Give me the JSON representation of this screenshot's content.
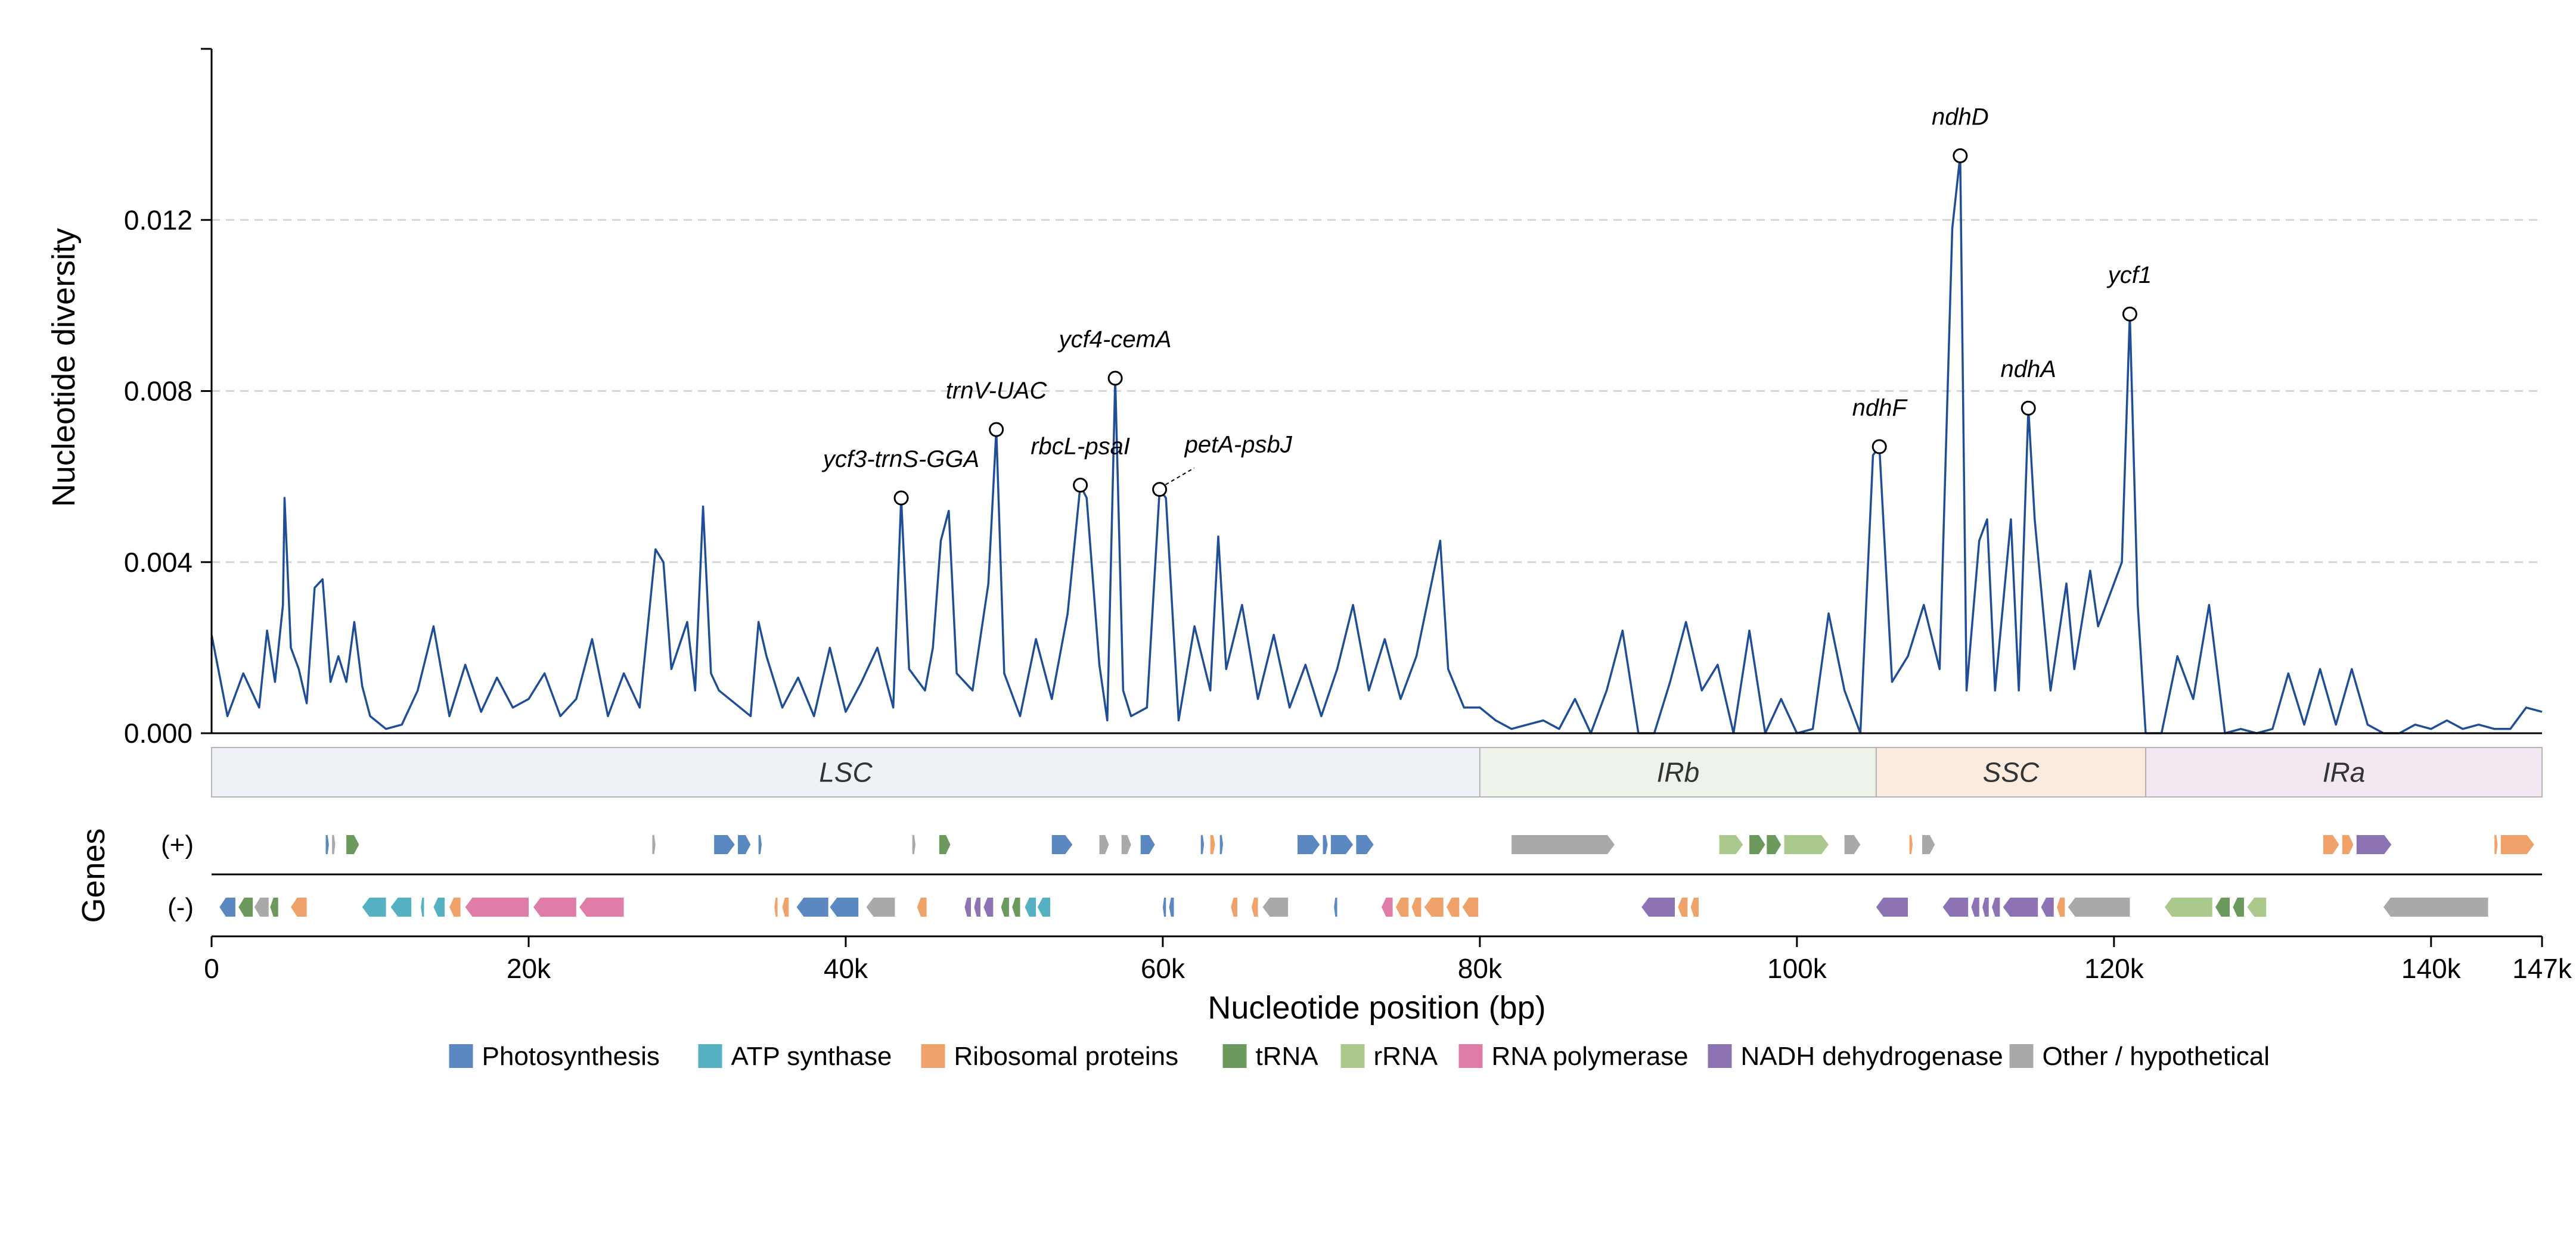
{
  "chart_data": {
    "type": "line",
    "xlabel": "Nucleotide position (bp)",
    "ylabel": "Nucleotide diversity",
    "xlim": [
      0,
      147000
    ],
    "ylim": [
      0,
      0.016
    ],
    "x_ticks": [
      0,
      20000,
      40000,
      60000,
      80000,
      100000,
      120000,
      140000,
      147000
    ],
    "x_tick_labels": [
      "0",
      "20k",
      "40k",
      "60k",
      "80k",
      "100k",
      "120k",
      "140k",
      "147k"
    ],
    "y_ticks": [
      0,
      0.004,
      0.008,
      0.012
    ],
    "y_tick_labels": [
      "0.000",
      "0.004",
      "0.008",
      "0.012"
    ],
    "grid": "horizontal dashed",
    "line_color": "#1f4e96",
    "series_points": [
      [
        0,
        0.0023
      ],
      [
        1000,
        0.0004
      ],
      [
        2000,
        0.0014
      ],
      [
        3000,
        0.0006
      ],
      [
        3500,
        0.0024
      ],
      [
        4000,
        0.0012
      ],
      [
        4500,
        0.003
      ],
      [
        4600,
        0.0055
      ],
      [
        5000,
        0.002
      ],
      [
        5500,
        0.0015
      ],
      [
        6000,
        0.0007
      ],
      [
        6500,
        0.0034
      ],
      [
        7000,
        0.0036
      ],
      [
        7500,
        0.0012
      ],
      [
        8000,
        0.0018
      ],
      [
        8500,
        0.0012
      ],
      [
        9000,
        0.0026
      ],
      [
        9500,
        0.0011
      ],
      [
        10000,
        0.0004
      ],
      [
        11000,
        0.0001
      ],
      [
        12000,
        0.0002
      ],
      [
        13000,
        0.001
      ],
      [
        14000,
        0.0025
      ],
      [
        15000,
        0.0004
      ],
      [
        16000,
        0.0016
      ],
      [
        17000,
        0.0005
      ],
      [
        18000,
        0.0013
      ],
      [
        19000,
        0.0006
      ],
      [
        20000,
        0.0008
      ],
      [
        21000,
        0.0014
      ],
      [
        22000,
        0.0004
      ],
      [
        23000,
        0.0008
      ],
      [
        24000,
        0.0022
      ],
      [
        25000,
        0.0004
      ],
      [
        26000,
        0.0014
      ],
      [
        27000,
        0.0006
      ],
      [
        28000,
        0.0043
      ],
      [
        28500,
        0.004
      ],
      [
        29000,
        0.0015
      ],
      [
        30000,
        0.0026
      ],
      [
        30500,
        0.001
      ],
      [
        31000,
        0.0053
      ],
      [
        31500,
        0.0014
      ],
      [
        32000,
        0.001
      ],
      [
        33000,
        0.0007
      ],
      [
        34000,
        0.0004
      ],
      [
        34500,
        0.0026
      ],
      [
        35000,
        0.0018
      ],
      [
        36000,
        0.0006
      ],
      [
        37000,
        0.0013
      ],
      [
        38000,
        0.0004
      ],
      [
        39000,
        0.002
      ],
      [
        40000,
        0.0005
      ],
      [
        41000,
        0.0012
      ],
      [
        42000,
        0.002
      ],
      [
        43000,
        0.0006
      ],
      [
        43500,
        0.0055
      ],
      [
        44000,
        0.0015
      ],
      [
        45000,
        0.001
      ],
      [
        45500,
        0.002
      ],
      [
        46000,
        0.0045
      ],
      [
        46500,
        0.0052
      ],
      [
        47000,
        0.0014
      ],
      [
        48000,
        0.001
      ],
      [
        49000,
        0.0035
      ],
      [
        49500,
        0.0071
      ],
      [
        50000,
        0.0014
      ],
      [
        51000,
        0.0004
      ],
      [
        52000,
        0.0022
      ],
      [
        53000,
        0.0008
      ],
      [
        54000,
        0.0028
      ],
      [
        54800,
        0.0058
      ],
      [
        55200,
        0.0055
      ],
      [
        56000,
        0.0016
      ],
      [
        56500,
        0.0003
      ],
      [
        57000,
        0.0083
      ],
      [
        57500,
        0.001
      ],
      [
        58000,
        0.0004
      ],
      [
        59000,
        0.0006
      ],
      [
        59800,
        0.0057
      ],
      [
        60200,
        0.0055
      ],
      [
        61000,
        0.0003
      ],
      [
        62000,
        0.0025
      ],
      [
        63000,
        0.001
      ],
      [
        63500,
        0.0046
      ],
      [
        64000,
        0.0015
      ],
      [
        65000,
        0.003
      ],
      [
        66000,
        0.0008
      ],
      [
        67000,
        0.0023
      ],
      [
        68000,
        0.0006
      ],
      [
        69000,
        0.0016
      ],
      [
        70000,
        0.0004
      ],
      [
        71000,
        0.0015
      ],
      [
        72000,
        0.003
      ],
      [
        73000,
        0.001
      ],
      [
        74000,
        0.0022
      ],
      [
        75000,
        0.0008
      ],
      [
        76000,
        0.0018
      ],
      [
        77000,
        0.0036
      ],
      [
        77500,
        0.0045
      ],
      [
        78000,
        0.0015
      ],
      [
        79000,
        0.0006
      ],
      [
        80000,
        0.0006
      ],
      [
        81000,
        0.0003
      ],
      [
        82000,
        0.0001
      ],
      [
        83000,
        0.0002
      ],
      [
        84000,
        0.0003
      ],
      [
        85000,
        0.0001
      ],
      [
        86000,
        0.0008
      ],
      [
        87000,
        0.0
      ],
      [
        88000,
        0.001
      ],
      [
        89000,
        0.0024
      ],
      [
        90000,
        0.0
      ],
      [
        91000,
        0.0
      ],
      [
        92000,
        0.0012
      ],
      [
        93000,
        0.0026
      ],
      [
        94000,
        0.001
      ],
      [
        95000,
        0.0016
      ],
      [
        96000,
        0.0
      ],
      [
        97000,
        0.0024
      ],
      [
        98000,
        0.0
      ],
      [
        99000,
        0.0008
      ],
      [
        100000,
        0.0
      ],
      [
        101000,
        0.0001
      ],
      [
        102000,
        0.0028
      ],
      [
        103000,
        0.001
      ],
      [
        104000,
        0.0
      ],
      [
        104800,
        0.0065
      ],
      [
        105200,
        0.0067
      ],
      [
        106000,
        0.0012
      ],
      [
        107000,
        0.0018
      ],
      [
        108000,
        0.003
      ],
      [
        109000,
        0.0015
      ],
      [
        109800,
        0.0118
      ],
      [
        110300,
        0.0135
      ],
      [
        110700,
        0.001
      ],
      [
        111500,
        0.0045
      ],
      [
        112000,
        0.005
      ],
      [
        112500,
        0.001
      ],
      [
        113500,
        0.005
      ],
      [
        114000,
        0.001
      ],
      [
        114600,
        0.0076
      ],
      [
        115000,
        0.005
      ],
      [
        116000,
        0.001
      ],
      [
        117000,
        0.0035
      ],
      [
        117500,
        0.0015
      ],
      [
        118500,
        0.0038
      ],
      [
        119000,
        0.0025
      ],
      [
        120500,
        0.004
      ],
      [
        121000,
        0.0098
      ],
      [
        121500,
        0.003
      ],
      [
        122000,
        0.0
      ],
      [
        123000,
        0.0
      ],
      [
        124000,
        0.0018
      ],
      [
        125000,
        0.0008
      ],
      [
        126000,
        0.003
      ],
      [
        127000,
        0.0
      ],
      [
        128000,
        0.0001
      ],
      [
        129000,
        0.0
      ],
      [
        130000,
        0.0001
      ],
      [
        131000,
        0.0014
      ],
      [
        132000,
        0.0002
      ],
      [
        133000,
        0.0015
      ],
      [
        134000,
        0.0002
      ],
      [
        135000,
        0.0015
      ],
      [
        136000,
        0.0002
      ],
      [
        137000,
        0.0
      ],
      [
        138000,
        0.0
      ],
      [
        139000,
        0.0002
      ],
      [
        140000,
        0.0001
      ],
      [
        141000,
        0.0003
      ],
      [
        142000,
        0.0001
      ],
      [
        143000,
        0.0002
      ],
      [
        144000,
        0.0001
      ],
      [
        145000,
        0.0001
      ],
      [
        146000,
        0.0006
      ],
      [
        147000,
        0.0005
      ]
    ],
    "peaks": [
      {
        "label": "ycf3-trnS-GGA",
        "x": 43500,
        "y": 0.0055
      },
      {
        "label": "trnV-UAC",
        "x": 49500,
        "y": 0.0071
      },
      {
        "label": "rbcL-psaI",
        "x": 54800,
        "y": 0.0058
      },
      {
        "label": "ycf4-cemA",
        "x": 57000,
        "y": 0.0083
      },
      {
        "label": "petA-psbJ",
        "x": 59800,
        "y": 0.0057
      },
      {
        "label": "ndhF",
        "x": 105200,
        "y": 0.0067
      },
      {
        "label": "ndhD",
        "x": 110300,
        "y": 0.0135
      },
      {
        "label": "ndhA",
        "x": 114600,
        "y": 0.0076
      },
      {
        "label": "ycf1",
        "x": 121000,
        "y": 0.0098
      }
    ],
    "regions": [
      {
        "label": "LSC",
        "start": 0,
        "end": 80000,
        "color": "#eef2f6"
      },
      {
        "label": "IRb",
        "start": 80000,
        "end": 105000,
        "color": "#edf3ea"
      },
      {
        "label": "SSC",
        "start": 105000,
        "end": 122000,
        "color": "#faebde"
      },
      {
        "label": "IRa",
        "start": 122000,
        "end": 147000,
        "color": "#f3e7f2"
      }
    ],
    "gene_track_title": "Genes",
    "strand_labels": [
      "(+)",
      "(-)"
    ],
    "categories": [
      {
        "name": "Photosynthesis",
        "color": "#5b88c0"
      },
      {
        "name": "ATP synthase",
        "color": "#56b2c2"
      },
      {
        "name": "Ribosomal proteins",
        "color": "#efa36a"
      },
      {
        "name": "tRNA",
        "color": "#6b9a5c"
      },
      {
        "name": "rRNA",
        "color": "#acc98d"
      },
      {
        "name": "RNA polymerase",
        "color": "#e07ca8"
      },
      {
        "name": "NADH dehydrogenase",
        "color": "#8e73b4"
      },
      {
        "name": "Other / hypothetical",
        "color": "#a9a9a9"
      }
    ],
    "genes_plus": [
      [
        7200,
        7400,
        "Photosynthesis"
      ],
      [
        7600,
        7800,
        "Other / hypothetical"
      ],
      [
        8500,
        9300,
        "tRNA"
      ],
      [
        27800,
        28000,
        "Other / hypothetical"
      ],
      [
        31700,
        33000,
        "Photosynthesis"
      ],
      [
        33200,
        34000,
        "Photosynthesis"
      ],
      [
        34500,
        34700,
        "Photosynthesis"
      ],
      [
        44200,
        44400,
        "Other / hypothetical"
      ],
      [
        45900,
        46600,
        "tRNA"
      ],
      [
        53000,
        54300,
        "Photosynthesis"
      ],
      [
        56000,
        56600,
        "Other / hypothetical"
      ],
      [
        57400,
        58000,
        "Other / hypothetical"
      ],
      [
        58600,
        59500,
        "Photosynthesis"
      ],
      [
        62400,
        62600,
        "Photosynthesis"
      ],
      [
        63000,
        63300,
        "Ribosomal proteins"
      ],
      [
        63600,
        63800,
        "Photosynthesis"
      ],
      [
        68500,
        69900,
        "Photosynthesis"
      ],
      [
        70100,
        70400,
        "Photosynthesis"
      ],
      [
        70600,
        72000,
        "Photosynthesis"
      ],
      [
        72200,
        73300,
        "Photosynthesis"
      ],
      [
        82000,
        88500,
        "Other / hypothetical"
      ],
      [
        95100,
        96600,
        "rRNA"
      ],
      [
        97000,
        98000,
        "tRNA"
      ],
      [
        98100,
        99000,
        "tRNA"
      ],
      [
        99200,
        102000,
        "rRNA"
      ],
      [
        103000,
        104000,
        "Other / hypothetical"
      ],
      [
        107100,
        107300,
        "Ribosomal proteins"
      ],
      [
        107900,
        108700,
        "Other / hypothetical"
      ],
      [
        133200,
        134200,
        "Ribosomal proteins"
      ],
      [
        134400,
        135100,
        "Ribosomal proteins"
      ],
      [
        135300,
        137500,
        "NADH dehydrogenase"
      ],
      [
        144000,
        144200,
        "Ribosomal proteins"
      ],
      [
        144400,
        146500,
        "Ribosomal proteins"
      ]
    ],
    "genes_minus": [
      [
        500,
        1500,
        "Photosynthesis"
      ],
      [
        1700,
        2600,
        "tRNA"
      ],
      [
        2700,
        3600,
        "Other / hypothetical"
      ],
      [
        3700,
        4200,
        "tRNA"
      ],
      [
        5000,
        6000,
        "Ribosomal proteins"
      ],
      [
        9500,
        11000,
        "ATP synthase"
      ],
      [
        11300,
        12600,
        "ATP synthase"
      ],
      [
        13200,
        13400,
        "ATP synthase"
      ],
      [
        14000,
        14700,
        "ATP synthase"
      ],
      [
        15000,
        15700,
        "Ribosomal proteins"
      ],
      [
        16000,
        20000,
        "RNA polymerase"
      ],
      [
        20300,
        23000,
        "RNA polymerase"
      ],
      [
        23200,
        26000,
        "RNA polymerase"
      ],
      [
        35500,
        35700,
        "Ribosomal proteins"
      ],
      [
        36000,
        36400,
        "Ribosomal proteins"
      ],
      [
        36900,
        38900,
        "Photosynthesis"
      ],
      [
        39000,
        40800,
        "Photosynthesis"
      ],
      [
        41300,
        43100,
        "Other / hypothetical"
      ],
      [
        44500,
        45100,
        "Ribosomal proteins"
      ],
      [
        47500,
        47900,
        "NADH dehydrogenase"
      ],
      [
        48100,
        48500,
        "NADH dehydrogenase"
      ],
      [
        48700,
        49300,
        "NADH dehydrogenase"
      ],
      [
        49800,
        50300,
        "tRNA"
      ],
      [
        50500,
        51000,
        "tRNA"
      ],
      [
        51300,
        52000,
        "ATP synthase"
      ],
      [
        52100,
        52900,
        "ATP synthase"
      ],
      [
        60000,
        60200,
        "Photosynthesis"
      ],
      [
        60400,
        60700,
        "Photosynthesis"
      ],
      [
        64300,
        64700,
        "Ribosomal proteins"
      ],
      [
        65600,
        66000,
        "Ribosomal proteins"
      ],
      [
        66300,
        67900,
        "Other / hypothetical"
      ],
      [
        70800,
        71000,
        "Photosynthesis"
      ],
      [
        73800,
        74500,
        "RNA polymerase"
      ],
      [
        74700,
        75500,
        "Ribosomal proteins"
      ],
      [
        75700,
        76300,
        "Ribosomal proteins"
      ],
      [
        76500,
        77700,
        "Ribosomal proteins"
      ],
      [
        77900,
        78700,
        "Ribosomal proteins"
      ],
      [
        78900,
        79900,
        "Ribosomal proteins"
      ],
      [
        90200,
        92300,
        "NADH dehydrogenase"
      ],
      [
        92500,
        93100,
        "Ribosomal proteins"
      ],
      [
        93300,
        93800,
        "Ribosomal proteins"
      ],
      [
        105000,
        107000,
        "NADH dehydrogenase"
      ],
      [
        109200,
        110800,
        "NADH dehydrogenase"
      ],
      [
        111000,
        111500,
        "NADH dehydrogenase"
      ],
      [
        111700,
        112100,
        "NADH dehydrogenase"
      ],
      [
        112300,
        112800,
        "NADH dehydrogenase"
      ],
      [
        113000,
        115200,
        "NADH dehydrogenase"
      ],
      [
        115400,
        116200,
        "NADH dehydrogenase"
      ],
      [
        116400,
        116900,
        "Ribosomal proteins"
      ],
      [
        117100,
        121000,
        "Other / hypothetical"
      ],
      [
        123200,
        126200,
        "rRNA"
      ],
      [
        126400,
        127300,
        "tRNA"
      ],
      [
        127500,
        128200,
        "tRNA"
      ],
      [
        128400,
        129600,
        "rRNA"
      ],
      [
        137000,
        143600,
        "Other / hypothetical"
      ]
    ]
  }
}
